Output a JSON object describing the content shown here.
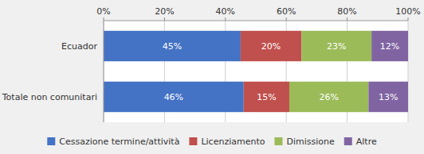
{
  "chart_data": {
    "type": "bar",
    "orientation": "horizontal",
    "stacked": true,
    "categories": [
      "Ecuador",
      "Totale non comunitari"
    ],
    "series": [
      {
        "name": "Cessazione termine/attività",
        "color": "#4472C4",
        "values": [
          45,
          46
        ],
        "value_labels": [
          "45%",
          "46%"
        ]
      },
      {
        "name": "Licenziamento",
        "color": "#C0504D",
        "values": [
          20,
          15
        ],
        "value_labels": [
          "20%",
          "15%"
        ]
      },
      {
        "name": "Dimissione",
        "color": "#9BBB59",
        "values": [
          23,
          26
        ],
        "value_labels": [
          "23%",
          "26%"
        ]
      },
      {
        "name": "Altre",
        "color": "#8064A2",
        "values": [
          12,
          13
        ],
        "value_labels": [
          "12%",
          "13%"
        ]
      }
    ],
    "xlim": [
      0,
      100
    ],
    "xticks": [
      {
        "value": 0,
        "label": "0%"
      },
      {
        "value": 20,
        "label": "20%"
      },
      {
        "value": 40,
        "label": "40%"
      },
      {
        "value": 60,
        "label": "60%"
      },
      {
        "value": 80,
        "label": "80%"
      },
      {
        "value": 100,
        "label": "100%"
      }
    ],
    "grid": true,
    "data_labels": true,
    "legend": "bottom"
  }
}
